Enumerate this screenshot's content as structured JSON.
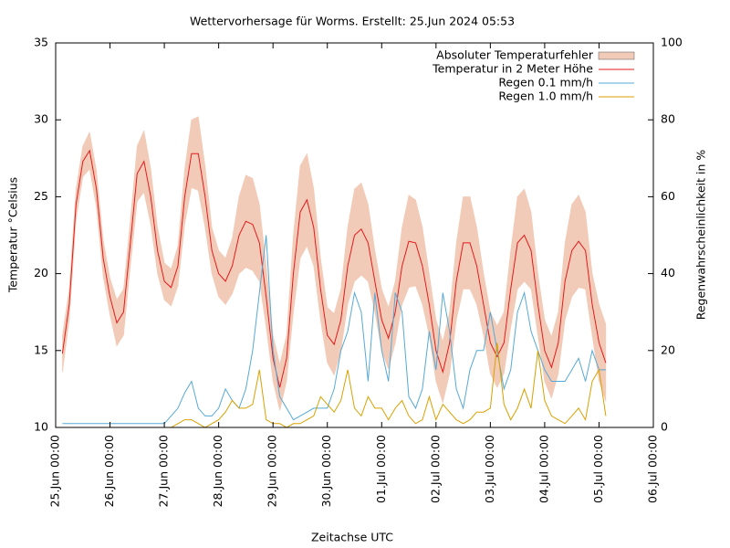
{
  "chart_data": {
    "type": "line",
    "title": "Wettervorhersage für Worms. Erstellt: 25.Jun 2024 05:53",
    "x_label": "Zeitachse UTC",
    "y_label": "Temperatur °Celsius",
    "y2_label": "Regenwahrscheinlichkeit in %",
    "x": [
      "25.Jun 03:00",
      "25.Jun 06:00",
      "25.Jun 09:00",
      "25.Jun 12:00",
      "25.Jun 15:00",
      "25.Jun 18:00",
      "25.Jun 21:00",
      "26.Jun 00:00",
      "26.Jun 03:00",
      "26.Jun 06:00",
      "26.Jun 09:00",
      "26.Jun 12:00",
      "26.Jun 15:00",
      "26.Jun 18:00",
      "26.Jun 21:00",
      "27.Jun 00:00",
      "27.Jun 03:00",
      "27.Jun 06:00",
      "27.Jun 09:00",
      "27.Jun 12:00",
      "27.Jun 15:00",
      "27.Jun 18:00",
      "27.Jun 21:00",
      "28.Jun 00:00",
      "28.Jun 03:00",
      "28.Jun 06:00",
      "28.Jun 09:00",
      "28.Jun 12:00",
      "28.Jun 15:00",
      "28.Jun 18:00",
      "28.Jun 21:00",
      "29.Jun 00:00",
      "29.Jun 03:00",
      "29.Jun 06:00",
      "29.Jun 09:00",
      "29.Jun 12:00",
      "29.Jun 15:00",
      "29.Jun 18:00",
      "29.Jun 21:00",
      "30.Jun 00:00",
      "30.Jun 03:00",
      "30.Jun 06:00",
      "30.Jun 09:00",
      "30.Jun 12:00",
      "30.Jun 15:00",
      "30.Jun 18:00",
      "30.Jun 21:00",
      "01.Jul 00:00",
      "01.Jul 03:00",
      "01.Jul 06:00",
      "01.Jul 09:00",
      "01.Jul 12:00",
      "01.Jul 15:00",
      "01.Jul 18:00",
      "01.Jul 21:00",
      "02.Jul 00:00",
      "02.Jul 03:00",
      "02.Jul 06:00",
      "02.Jul 09:00",
      "02.Jul 12:00",
      "02.Jul 15:00",
      "02.Jul 18:00",
      "02.Jul 21:00",
      "03.Jul 00:00",
      "03.Jul 03:00",
      "03.Jul 06:00",
      "03.Jul 09:00",
      "03.Jul 12:00",
      "03.Jul 15:00",
      "03.Jul 18:00",
      "03.Jul 21:00",
      "04.Jul 00:00",
      "04.Jul 03:00",
      "04.Jul 06:00",
      "04.Jul 09:00",
      "04.Jul 12:00",
      "04.Jul 15:00",
      "04.Jul 18:00",
      "04.Jul 21:00",
      "05.Jul 00:00",
      "05.Jul 03:00"
    ],
    "series": [
      {
        "name": "Absoluter Temperaturfehler",
        "type": "band",
        "color": "#f2cbb8",
        "values": [
          1.2,
          1,
          1,
          1,
          1.2,
          1.2,
          1.2,
          1.2,
          1.5,
          1.5,
          1.5,
          1.8,
          2,
          1.8,
          1.5,
          1.2,
          1.2,
          1.3,
          1.8,
          2.2,
          2.4,
          2,
          1.5,
          1.5,
          1.5,
          1.8,
          2.5,
          3,
          3,
          2.5,
          2,
          1.5,
          1.5,
          1.5,
          2.5,
          3,
          3,
          2.5,
          2,
          1.8,
          2,
          2,
          2.5,
          3,
          3,
          2.5,
          2,
          2,
          2,
          2,
          2.5,
          3,
          2.8,
          2.5,
          2,
          2,
          2,
          2,
          2.5,
          3,
          3,
          2.5,
          2,
          2,
          2,
          2,
          2.5,
          3,
          3,
          2.5,
          2,
          2,
          2,
          2,
          2.5,
          3,
          3,
          2.5,
          2,
          2.5,
          2.5
        ]
      },
      {
        "name": "Temperatur in 2 Meter Höhe",
        "type": "line",
        "color": "#e41a1c",
        "values": [
          14.8,
          18,
          24.5,
          27.3,
          28,
          25.5,
          21,
          18.5,
          16.8,
          17.5,
          22,
          26.5,
          27.3,
          25,
          21.5,
          19.5,
          19.1,
          20.5,
          25,
          27.8,
          27.8,
          25,
          21.5,
          20,
          19.5,
          20.5,
          22.5,
          23.4,
          23.2,
          22,
          18.5,
          14.5,
          12.6,
          14.5,
          20,
          24,
          24.8,
          23,
          19,
          16,
          15.4,
          17,
          20.5,
          22.5,
          22.9,
          22,
          19.5,
          17,
          15.8,
          17.5,
          20.5,
          22.1,
          22,
          20.5,
          18,
          15,
          13.6,
          15.5,
          19.5,
          22,
          22,
          20.5,
          18,
          15.5,
          14.6,
          15.5,
          19,
          22,
          22.5,
          21.5,
          18,
          15,
          13.9,
          15.5,
          19.5,
          21.5,
          22.1,
          21.5,
          18,
          15.5,
          14.2
        ]
      },
      {
        "name": "Regen 0.1 mm/h",
        "type": "line",
        "axis": "y2",
        "color": "#56a9d6",
        "values": [
          1,
          1,
          1,
          1,
          1,
          1,
          1,
          1,
          1,
          1,
          1,
          1,
          1,
          1,
          1,
          1,
          3,
          5,
          9,
          12,
          5,
          3,
          3,
          5,
          10,
          7,
          5,
          10,
          20,
          35,
          50,
          20,
          8,
          5,
          2,
          3,
          4,
          5,
          5,
          5,
          10,
          20,
          25,
          35,
          30,
          12,
          35,
          20,
          12,
          35,
          30,
          8,
          5,
          10,
          25,
          15,
          35,
          25,
          10,
          5,
          15,
          20,
          20,
          30,
          20,
          10,
          15,
          30,
          35,
          25,
          20,
          15,
          12,
          12,
          12,
          15,
          18,
          12,
          20,
          15,
          15
        ]
      },
      {
        "name": "Regen 1.0 mm/h",
        "type": "line",
        "axis": "y2",
        "color": "#d9a000",
        "values": [
          0,
          0,
          0,
          0,
          0,
          0,
          0,
          0,
          0,
          0,
          0,
          0,
          0,
          0,
          0,
          0,
          0,
          1,
          2,
          2,
          1,
          0,
          1,
          2,
          4,
          7,
          5,
          5,
          6,
          15,
          2,
          1,
          1,
          0,
          1,
          1,
          2,
          3,
          8,
          6,
          4,
          7,
          15,
          5,
          3,
          8,
          5,
          5,
          2,
          5,
          7,
          3,
          1,
          2,
          8,
          2,
          6,
          4,
          2,
          1,
          2,
          4,
          4,
          5,
          22,
          6,
          2,
          5,
          10,
          5,
          20,
          7,
          3,
          2,
          1,
          3,
          5,
          2,
          12,
          15,
          3
        ]
      }
    ],
    "xlim": [
      "25.Jun 00:00",
      "06.Jul 00:00"
    ],
    "xticks": [
      "25.Jun 00:00",
      "26.Jun 00:00",
      "27.Jun 00:00",
      "28.Jun 00:00",
      "29.Jun 00:00",
      "30.Jun 00:00",
      "01.Jul 00:00",
      "02.Jul 00:00",
      "03.Jul 00:00",
      "04.Jul 00:00",
      "05.Jul 00:00",
      "06.Jul 00:00"
    ],
    "ylim": [
      10,
      35
    ],
    "yticks": [
      10,
      15,
      20,
      25,
      30,
      35
    ],
    "y2lim": [
      0,
      100
    ],
    "y2ticks": [
      0,
      20,
      40,
      60,
      80,
      100
    ],
    "grid": false,
    "legend": "upper right"
  }
}
